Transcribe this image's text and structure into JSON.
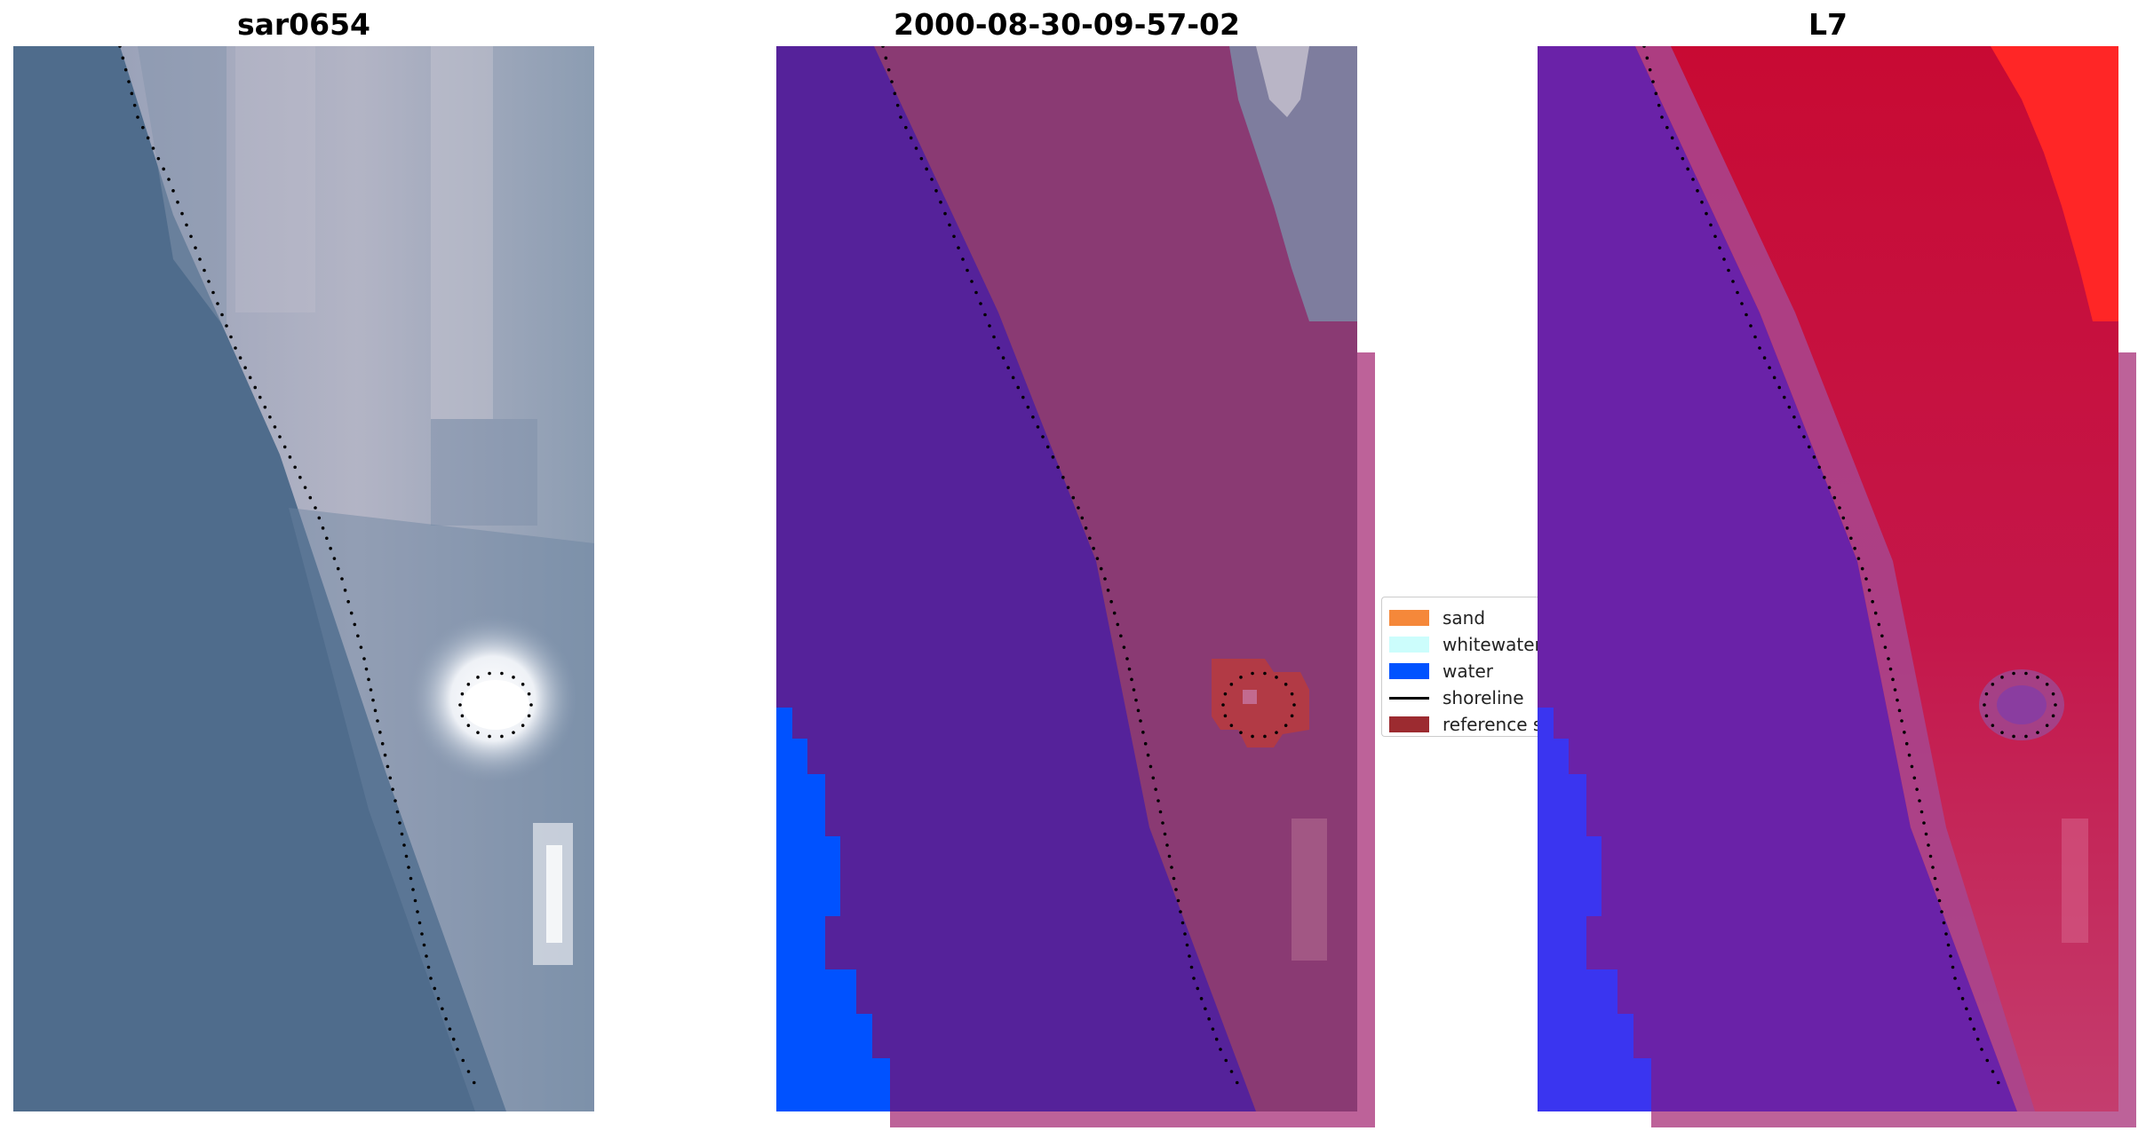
{
  "panels": [
    {
      "title": "sar0654",
      "view": "rgb"
    },
    {
      "title": "2000-08-30-09-57-02",
      "view": "classification"
    },
    {
      "title": "L7",
      "view": "index"
    }
  ],
  "legend": {
    "items": [
      {
        "label": "sand",
        "color": "#f5883a",
        "kind": "patch"
      },
      {
        "label": "whitewater",
        "color": "#ccfdfc",
        "kind": "patch"
      },
      {
        "label": "water",
        "color": "#0052ff",
        "kind": "patch"
      },
      {
        "label": "shoreline",
        "color": "#000000",
        "kind": "line"
      },
      {
        "label": "reference shoreline",
        "color": "#9c2b30",
        "kind": "patch"
      }
    ]
  },
  "colors": {
    "ocean_rgb": "#4f6c8c",
    "land_rgb": "#a8aec0",
    "bright_target": "#ffffff",
    "class_water_overlay": "#55229a",
    "class_land": "#8a3a73",
    "class_pink_frame": "#bd6299",
    "index_water": "#6a22a8",
    "index_land": "#c0103a",
    "index_hot": "#ff2a2a"
  }
}
